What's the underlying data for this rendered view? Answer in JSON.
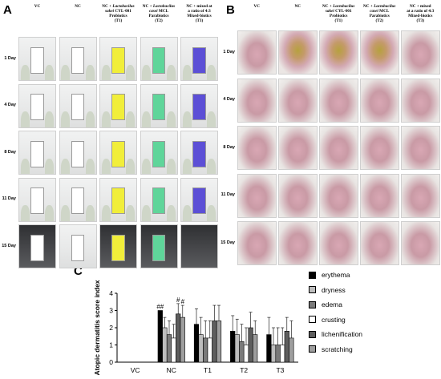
{
  "panel_a": {
    "letter": "A",
    "columns": [
      {
        "lines": [
          {
            "text": "VC",
            "italic": false
          }
        ]
      },
      {
        "lines": [
          {
            "text": "NC",
            "italic": false
          }
        ]
      },
      {
        "lines": [
          {
            "text": "NC + ",
            "italic": false
          },
          {
            "text": "Lactobacilus",
            "italic": true
          },
          {
            "text": "sakei",
            "italic": true
          },
          {
            "text": " CYL-001",
            "italic": false
          },
          {
            "text": "Probiotics",
            "italic": false
          },
          {
            "text": "(T1)",
            "italic": false
          }
        ]
      },
      {
        "lines": [
          {
            "text": "NC + ",
            "italic": false
          },
          {
            "text": "Lactobacilus",
            "italic": true
          },
          {
            "text": "casei",
            "italic": true
          },
          {
            "text": " MCL",
            "italic": false
          },
          {
            "text": "Parabiotics",
            "italic": false
          },
          {
            "text": "(T2)",
            "italic": false
          }
        ]
      },
      {
        "lines": [
          {
            "text": "NC + mixed at",
            "italic": false
          },
          {
            "text": "a ratio of 4:3",
            "italic": false
          },
          {
            "text": "Mixed-biotics",
            "italic": false
          },
          {
            "text": "(T3)",
            "italic": false
          }
        ]
      }
    ],
    "rows": [
      "1 Day",
      "4 Day",
      "8 Day",
      "11 Day",
      "15 Day"
    ],
    "card_colors": [
      "#ffffff",
      "#ffffff",
      "#f1ee3a",
      "#5fd59a",
      "#5c4fd6"
    ]
  },
  "panel_b": {
    "letter": "B",
    "columns": [
      {
        "lines": [
          {
            "text": "VC",
            "italic": false
          }
        ]
      },
      {
        "lines": [
          {
            "text": "NC",
            "italic": false
          }
        ]
      },
      {
        "lines": [
          {
            "text": "NC + ",
            "italic": false
          },
          {
            "text": "Lactobacilus",
            "italic": true
          },
          {
            "text": "sakei",
            "italic": true
          },
          {
            "text": " CYL-001",
            "italic": false
          },
          {
            "text": "Probiotics",
            "italic": false
          },
          {
            "text": "(T1)",
            "italic": false
          }
        ]
      },
      {
        "lines": [
          {
            "text": "NC + ",
            "italic": false
          },
          {
            "text": "Lactobacilus",
            "italic": true
          },
          {
            "text": "casei",
            "italic": true
          },
          {
            "text": " MCL",
            "italic": false
          },
          {
            "text": "Parabiotics",
            "italic": false
          },
          {
            "text": "(T2)",
            "italic": false
          }
        ]
      },
      {
        "lines": [
          {
            "text": "NC + mixed",
            "italic": false
          },
          {
            "text": "at a ratio of 4:3",
            "italic": false
          },
          {
            "text": "Mixed-biotics",
            "italic": false
          },
          {
            "text": "(T3)",
            "italic": false
          }
        ]
      }
    ],
    "rows": [
      "1 Day",
      "4 Day",
      "8 Day",
      "11 Day",
      "15 Day"
    ]
  },
  "panel_c": {
    "letter": "C"
  },
  "chart_data": {
    "type": "bar",
    "title": "",
    "xlabel": "",
    "ylabel": "Atopic dermatitis score index",
    "ylim": [
      0,
      4
    ],
    "yticks": [
      "0",
      "1",
      "2",
      "3",
      "4"
    ],
    "grid": false,
    "legend_position": "right",
    "categories": [
      "VC",
      "NC",
      "T1",
      "T2",
      "T3"
    ],
    "series": [
      {
        "name": "erythema",
        "fill": "#000000",
        "values": [
          0,
          3.0,
          2.2,
          1.8,
          1.6
        ],
        "errors": [
          0,
          0,
          0.9,
          0.9,
          1.0
        ]
      },
      {
        "name": "dryness",
        "fill": "#bdbdbd",
        "values": [
          0,
          2.0,
          1.6,
          1.6,
          1.0
        ],
        "errors": [
          0,
          0.6,
          1.0,
          0.9,
          1.0
        ]
      },
      {
        "name": "edema",
        "fill": "#7a7a7a",
        "values": [
          0,
          1.6,
          1.4,
          1.2,
          1.0
        ],
        "errors": [
          0,
          0.8,
          1.0,
          1.0,
          1.0
        ]
      },
      {
        "name": "crusting",
        "fill": "#ffffff",
        "values": [
          0,
          1.4,
          1.4,
          1.0,
          1.0
        ],
        "errors": [
          0,
          0.8,
          1.0,
          1.0,
          1.0
        ]
      },
      {
        "name": "lichenification",
        "fill": "#5e5e5e",
        "values": [
          0,
          2.8,
          2.4,
          2.0,
          1.8
        ],
        "errors": [
          0,
          0.6,
          0.9,
          0.9,
          0.8
        ]
      },
      {
        "name": "scratching",
        "fill": "#9e9e9e",
        "values": [
          0,
          2.6,
          2.4,
          1.6,
          1.4
        ],
        "errors": [
          0,
          0.7,
          0.9,
          0.8,
          1.0
        ]
      }
    ],
    "annotations": [
      {
        "text": "##",
        "category": "NC",
        "series": "erythema"
      },
      {
        "text": "#",
        "category": "NC",
        "series": "lichenification"
      },
      {
        "text": "#",
        "category": "NC",
        "series": "scratching"
      }
    ]
  }
}
